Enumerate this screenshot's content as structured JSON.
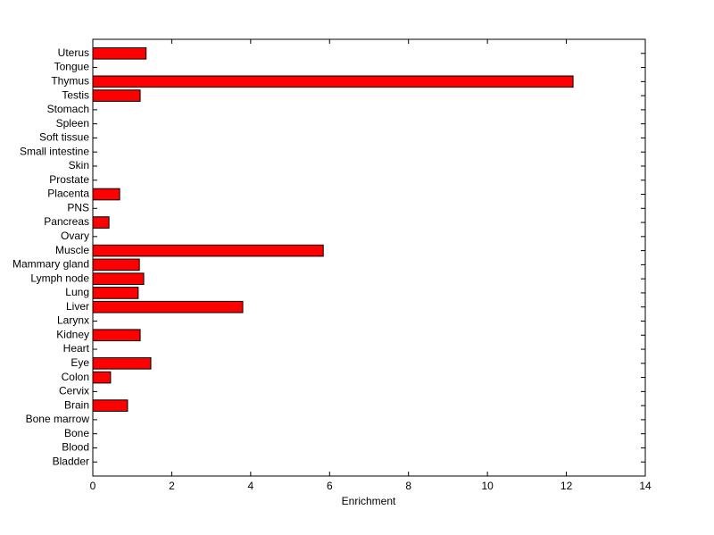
{
  "chart_data": {
    "type": "hbar",
    "categories": [
      "Uterus",
      "Tongue",
      "Thymus",
      "Testis",
      "Stomach",
      "Spleen",
      "Soft tissue",
      "Small intestine",
      "Skin",
      "Prostate",
      "Placenta",
      "PNS",
      "Pancreas",
      "Ovary",
      "Muscle",
      "Mammary gland",
      "Lymph node",
      "Lung",
      "Liver",
      "Larynx",
      "Kidney",
      "Heart",
      "Eye",
      "Colon",
      "Cervix",
      "Brain",
      "Bone marrow",
      "Bone",
      "Blood",
      "Bladder"
    ],
    "values": [
      1.35,
      0,
      12.17,
      1.2,
      0,
      0,
      0,
      0,
      0,
      0,
      0.68,
      0,
      0.41,
      0,
      5.84,
      1.18,
      1.29,
      1.15,
      3.8,
      0,
      1.2,
      0,
      1.47,
      0.45,
      0,
      0.88,
      0,
      0,
      0,
      0
    ],
    "color": "#ff0000",
    "xlabel": "Enrichment",
    "xlim": [
      0,
      14
    ],
    "xticks": [
      0,
      2,
      4,
      6,
      8,
      10,
      12,
      14
    ]
  }
}
